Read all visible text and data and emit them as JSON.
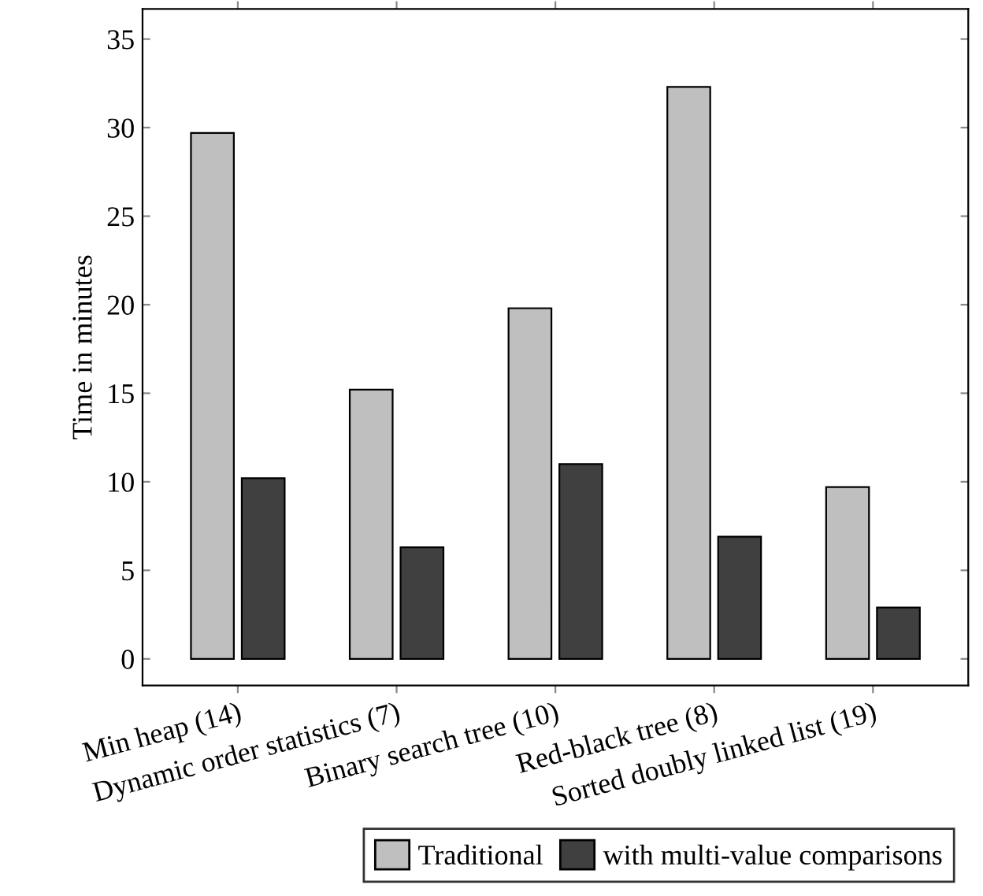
{
  "chart_data": {
    "type": "bar",
    "ylabel": "Time in minutes",
    "categories": [
      "Min heap (14)",
      "Dynamic order statistics (7)",
      "Binary search tree (10)",
      "Red-black tree (8)",
      "Sorted doubly linked list (19)"
    ],
    "series": [
      {
        "name": "Traditional",
        "color": "#bfbfbf",
        "values": [
          29.7,
          15.2,
          19.8,
          32.3,
          9.7
        ]
      },
      {
        "name": "with multi-value comparisons",
        "color": "#404040",
        "values": [
          10.2,
          6.3,
          11.0,
          6.9,
          2.9
        ]
      }
    ],
    "ylim": [
      -1.5,
      36.7
    ],
    "yticks": [
      0,
      5,
      10,
      15,
      20,
      25,
      30,
      35
    ],
    "grid": false,
    "legend": "bottom right"
  }
}
